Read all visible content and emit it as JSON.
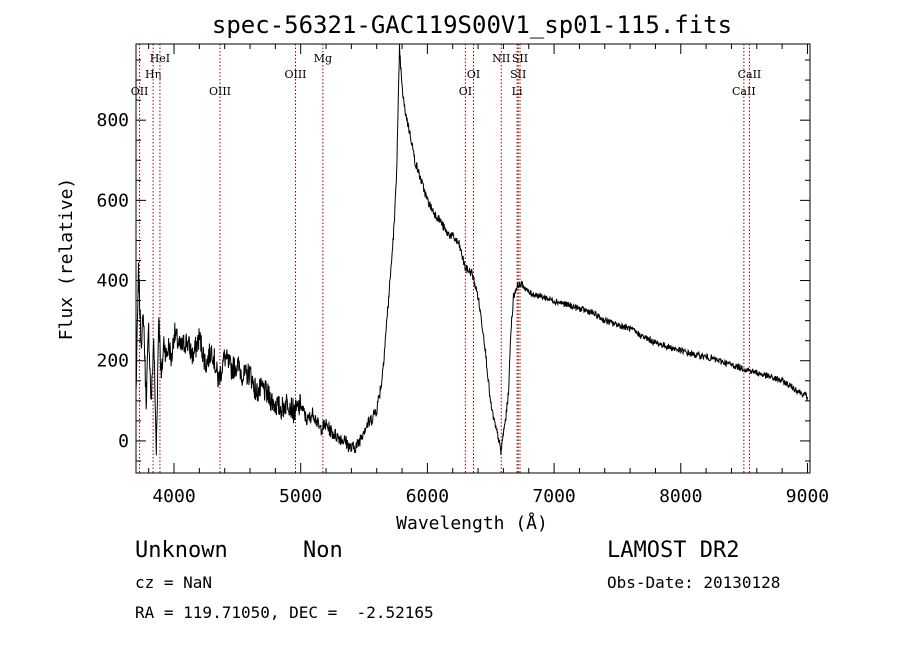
{
  "chart_data": {
    "type": "line",
    "title": "spec-56321-GAC119S00V1_sp01-115.fits",
    "xlabel": "Wavelength (Å)",
    "ylabel": "Flux (relative)",
    "xlim": [
      3700,
      9020
    ],
    "ylim": [
      -80,
      990
    ],
    "x_ticks": [
      4000,
      5000,
      6000,
      7000,
      8000,
      9000
    ],
    "y_ticks": [
      0,
      200,
      400,
      600,
      800
    ],
    "grid": false,
    "legend": "none",
    "line_color": "#000000",
    "marker_color": "#a00000",
    "series": [
      {
        "x": [
          3700,
          3720,
          3740,
          3760,
          3780,
          3800,
          3820,
          3840,
          3860,
          3880,
          3900,
          3920,
          3940,
          3960,
          3980,
          4000,
          4050,
          4100,
          4150,
          4200,
          4250,
          4300,
          4350,
          4400,
          4450,
          4500,
          4550,
          4600,
          4650,
          4700,
          4750,
          4800,
          4850,
          4900,
          4950,
          5000,
          5050,
          5100,
          5150,
          5200,
          5250,
          5300,
          5350,
          5400,
          5450,
          5500,
          5550,
          5600,
          5640,
          5680,
          5700,
          5720,
          5740,
          5760,
          5780,
          5800,
          5820,
          5840,
          5860,
          5880,
          5900,
          5950,
          6000,
          6050,
          6100,
          6150,
          6200,
          6250,
          6300,
          6350,
          6400,
          6450,
          6500,
          6520,
          6540,
          6560,
          6580,
          6600,
          6620,
          6640,
          6660,
          6680,
          6700,
          6720,
          6750,
          6800,
          6900,
          7000,
          7100,
          7200,
          7300,
          7400,
          7500,
          7600,
          7700,
          7800,
          7900,
          8000,
          8100,
          8200,
          8300,
          8400,
          8500,
          8600,
          8700,
          8800,
          8900,
          9000
        ],
        "y": [
          120,
          420,
          250,
          310,
          100,
          280,
          90,
          260,
          -30,
          320,
          150,
          250,
          210,
          240,
          200,
          270,
          230,
          250,
          210,
          260,
          190,
          230,
          150,
          210,
          180,
          190,
          160,
          170,
          120,
          130,
          110,
          90,
          80,
          100,
          70,
          90,
          50,
          70,
          30,
          40,
          20,
          10,
          0,
          -20,
          -10,
          30,
          50,
          80,
          150,
          300,
          380,
          460,
          550,
          700,
          980,
          880,
          830,
          800,
          770,
          740,
          700,
          650,
          600,
          570,
          550,
          520,
          510,
          490,
          430,
          420,
          360,
          250,
          90,
          60,
          30,
          10,
          -30,
          20,
          60,
          120,
          280,
          360,
          380,
          390,
          390,
          370,
          360,
          350,
          340,
          330,
          320,
          300,
          290,
          280,
          260,
          245,
          235,
          225,
          215,
          210,
          200,
          190,
          180,
          170,
          160,
          150,
          130,
          110
        ]
      }
    ],
    "line_markers": [
      {
        "x": 3728,
        "label": "OII",
        "row": 3
      },
      {
        "x": 3835,
        "label": "Hη",
        "row": 2
      },
      {
        "x": 3889,
        "label": "HeI",
        "row": 1
      },
      {
        "x": 4363,
        "label": "OIII",
        "row": 3
      },
      {
        "x": 4959,
        "label": "OIII",
        "row": 2
      },
      {
        "x": 5175,
        "label": "Mg",
        "row": 1
      },
      {
        "x": 6300,
        "label": "OI",
        "row": 3
      },
      {
        "x": 6364,
        "label": "OI",
        "row": 2
      },
      {
        "x": 6583,
        "label": "NII",
        "row": 1
      },
      {
        "x": 6708,
        "label": "Li",
        "row": 3
      },
      {
        "x": 6717,
        "label": "SII",
        "row": 2
      },
      {
        "x": 6731,
        "label": "SII",
        "row": 1
      },
      {
        "x": 8498,
        "label": "CaII",
        "row": 3
      },
      {
        "x": 8542,
        "label": "CaII",
        "row": 2
      }
    ]
  },
  "info": {
    "class": "Unknown",
    "subclass": "Non",
    "survey": "LAMOST DR2",
    "cz": "cz = NaN",
    "obs_date": "Obs-Date: 20130128",
    "radec": "RA = 119.71050, DEC =  -2.52165"
  }
}
